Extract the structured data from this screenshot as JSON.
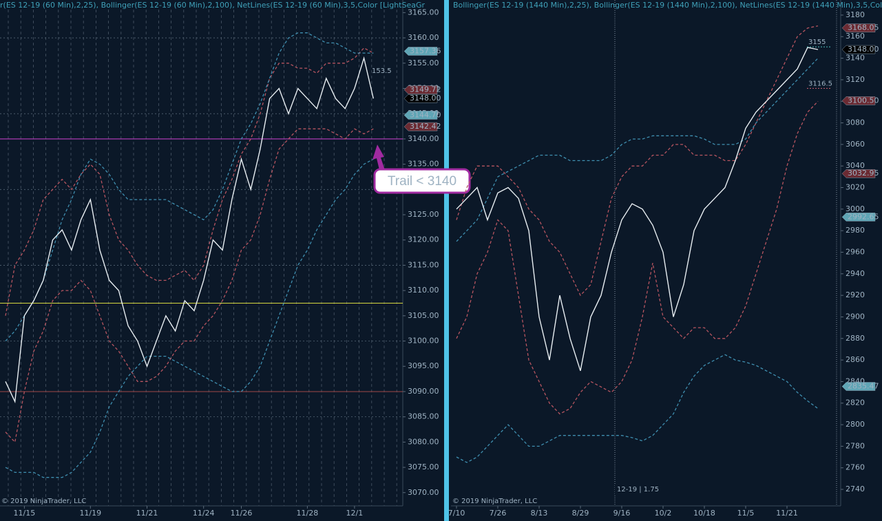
{
  "chart_data": [
    {
      "type": "line",
      "header": "r(ES 12-19 (60 Min),2,25), Bollinger(ES 12-19 (60 Min),2,100), NetLines(ES 12-19 (60 Min),3,5,Color [LightSeaGr",
      "copyright": "© 2019 NinjaTrader, LLC",
      "categories": [
        null,
        null,
        "11/15",
        null,
        null,
        null,
        null,
        null,
        null,
        "11/19",
        null,
        null,
        null,
        null,
        null,
        "11/21",
        null,
        null,
        null,
        null,
        null,
        "11/24",
        null,
        null,
        null,
        "11/26",
        null,
        null,
        null,
        null,
        null,
        null,
        "11/28",
        null,
        null,
        null,
        null,
        "12/1",
        null,
        null
      ],
      "series": [
        {
          "color": "#b85560",
          "values": [
            3105,
            3115,
            3118,
            3122,
            3128,
            3130,
            3132,
            3130,
            3133,
            3135,
            3133,
            3125,
            3120,
            3118,
            3115,
            3113,
            3112,
            3112,
            3113,
            3114,
            3112,
            3115,
            3122,
            3128,
            3132,
            3137,
            3140,
            3145,
            3152,
            3155,
            3155,
            3154,
            3154,
            3153,
            3155,
            3155,
            3155,
            3156,
            3158,
            3157
          ]
        },
        {
          "color": "#b85560",
          "values": [
            3082,
            3080,
            3090,
            3098,
            3102,
            3108,
            3110,
            3110,
            3112,
            3110,
            3105,
            3100,
            3098,
            3095,
            3092,
            3092,
            3093,
            3095,
            3098,
            3100,
            3100,
            3103,
            3105,
            3108,
            3112,
            3118,
            3120,
            3125,
            3132,
            3138,
            3140,
            3142,
            3142,
            3142,
            3142,
            3141,
            3140,
            3142,
            3141,
            3142
          ]
        },
        {
          "color": "#3f8fb0",
          "values": [
            3100,
            3102,
            3105,
            3108,
            3112,
            3118,
            3124,
            3128,
            3133,
            3136,
            3135,
            3133,
            3130,
            3128,
            3128,
            3128,
            3128,
            3128,
            3127,
            3126,
            3125,
            3124,
            3126,
            3130,
            3135,
            3140,
            3143,
            3147,
            3152,
            3157,
            3160,
            3161,
            3161,
            3160,
            3159,
            3159,
            3158,
            3157,
            3157,
            3157
          ]
        },
        {
          "color": "#3f8fb0",
          "values": [
            3075,
            3074,
            3074,
            3074,
            3073,
            3073,
            3073,
            3074,
            3076,
            3078,
            3082,
            3087,
            3090,
            3093,
            3095,
            3097,
            3097,
            3097,
            3096,
            3095,
            3094,
            3093,
            3092,
            3091,
            3090,
            3090,
            3092,
            3095,
            3100,
            3105,
            3110,
            3115,
            3118,
            3122,
            3125,
            3128,
            3130,
            3133,
            3135,
            3136
          ]
        },
        {
          "color": "#e8eef2",
          "values": [
            3092,
            3088,
            3105,
            3108,
            3112,
            3120,
            3122,
            3118,
            3124,
            3128,
            3118,
            3112,
            3110,
            3103,
            3100,
            3095,
            3100,
            3105,
            3102,
            3108,
            3106,
            3112,
            3120,
            3118,
            3128,
            3136,
            3130,
            3138,
            3148,
            3150,
            3145,
            3150,
            3148,
            3146,
            3152,
            3148,
            3146,
            3150,
            3156,
            3148
          ]
        }
      ],
      "ylim": [
        3066.7,
        3167.5
      ],
      "yticks": [
        {
          "value": 3070,
          "label": "3070.00"
        },
        {
          "value": 3075,
          "label": "3075.00"
        },
        {
          "value": 3080,
          "label": "3080.00"
        },
        {
          "value": 3085,
          "label": "3085.00"
        },
        {
          "value": 3090,
          "label": "3090.00"
        },
        {
          "value": 3095,
          "label": "3095.00"
        },
        {
          "value": 3100,
          "label": "3100.00"
        },
        {
          "value": 3105,
          "label": "3105.00"
        },
        {
          "value": 3110,
          "label": "3110.00"
        },
        {
          "value": 3115,
          "label": "3115.00"
        },
        {
          "value": 3120,
          "label": "3120.00"
        },
        {
          "value": 3125,
          "label": "3125.00"
        },
        {
          "value": 3130,
          "label": "3130.00"
        },
        {
          "value": 3135,
          "label": "3135.00"
        },
        {
          "value": 3140,
          "label": "3140.00"
        },
        {
          "value": 3145,
          "label": "3145.00"
        },
        {
          "value": 3150,
          "label": "3150.00"
        },
        {
          "value": 3155,
          "label": "3155.00"
        },
        {
          "value": 3160,
          "label": "3160.00"
        },
        {
          "value": 3165,
          "label": "3165.00"
        }
      ],
      "grid_levels": [
        3160,
        3145,
        3130,
        3115,
        3100,
        3085
      ],
      "hlines": [
        {
          "value": 3140,
          "color": "#d040d0"
        },
        {
          "value": 3107.5,
          "color": "#d8d840"
        },
        {
          "value": 3090,
          "color": "#a04848"
        }
      ],
      "price_tags": [
        {
          "value": 3157.36,
          "label": "3157.36",
          "color": "#5fa5b5"
        },
        {
          "value": 3149.72,
          "label": "3149.72",
          "color": "#6b2b33"
        },
        {
          "value": 3148,
          "label": "3148.00",
          "color": "#000000"
        },
        {
          "value": 3144.7,
          "label": "3144.70",
          "color": "#5fa5b5"
        },
        {
          "value": 3142.42,
          "label": "3142.42",
          "color": "#6b2b33"
        }
      ],
      "note": "153.5",
      "callout": "Trail < 3140"
    },
    {
      "type": "line",
      "header": "Bollinger(ES 12-19 (1440 Min),2,25), Bollinger(ES 12-19 (1440 Min),2,100), NetLines(ES 12-19 (1440 Min),3,5,Color",
      "copyright": "© 2019 NinjaTrader, LLC",
      "categories": [
        "7/10",
        null,
        null,
        null,
        "7/26",
        null,
        null,
        null,
        "8/13",
        null,
        null,
        null,
        "8/29",
        null,
        null,
        null,
        "9/16",
        null,
        null,
        null,
        "10/2",
        null,
        null,
        null,
        "10/18",
        null,
        null,
        null,
        "11/5",
        null,
        null,
        null,
        "11/21",
        null,
        null,
        null
      ],
      "series": [
        {
          "color": "#b85560",
          "values": [
            2990,
            3020,
            3040,
            3040,
            3040,
            3030,
            3020,
            3000,
            2990,
            2970,
            2960,
            2940,
            2920,
            2930,
            2970,
            3010,
            3030,
            3040,
            3040,
            3050,
            3050,
            3060,
            3060,
            3050,
            3050,
            3050,
            3045,
            3045,
            3060,
            3080,
            3100,
            3120,
            3140,
            3160,
            3168,
            3170
          ]
        },
        {
          "color": "#b85560",
          "values": [
            2880,
            2900,
            2940,
            2960,
            2990,
            2980,
            2920,
            2860,
            2840,
            2820,
            2810,
            2815,
            2830,
            2840,
            2835,
            2830,
            2840,
            2860,
            2900,
            2950,
            2900,
            2890,
            2880,
            2890,
            2890,
            2880,
            2880,
            2890,
            2910,
            2940,
            2970,
            3000,
            3040,
            3070,
            3090,
            3100
          ]
        },
        {
          "color": "#3f8fb0",
          "values": [
            2970,
            2980,
            2990,
            3010,
            3030,
            3035,
            3040,
            3045,
            3050,
            3050,
            3050,
            3045,
            3045,
            3045,
            3045,
            3050,
            3060,
            3065,
            3065,
            3068,
            3068,
            3068,
            3068,
            3068,
            3065,
            3060,
            3060,
            3060,
            3065,
            3080,
            3090,
            3100,
            3110,
            3120,
            3130,
            3140
          ]
        },
        {
          "color": "#3f8fb0",
          "values": [
            2770,
            2765,
            2770,
            2780,
            2790,
            2800,
            2790,
            2780,
            2780,
            2785,
            2790,
            2790,
            2790,
            2790,
            2790,
            2790,
            2790,
            2788,
            2785,
            2790,
            2800,
            2810,
            2830,
            2845,
            2855,
            2860,
            2865,
            2860,
            2858,
            2855,
            2850,
            2845,
            2840,
            2830,
            2822,
            2815
          ]
        },
        {
          "color": "#e8eef2",
          "values": [
            3000,
            3010,
            3020,
            2990,
            3015,
            3020,
            3010,
            2980,
            2900,
            2860,
            2920,
            2880,
            2850,
            2900,
            2920,
            2960,
            2990,
            3005,
            3000,
            2985,
            2960,
            2900,
            2930,
            2980,
            3000,
            3010,
            3020,
            3045,
            3075,
            3090,
            3100,
            3110,
            3120,
            3130,
            3150,
            3148
          ]
        }
      ],
      "ylim": [
        2721.5,
        3194
      ],
      "yticks": [
        2740,
        2760,
        2780,
        2800,
        2820,
        2840,
        2860,
        2880,
        2900,
        2920,
        2940,
        2960,
        2980,
        3000,
        3020,
        3040,
        3060,
        3080,
        3100,
        3120,
        3140,
        3160,
        3180
      ],
      "grid_levels": [],
      "hlines": [],
      "price_tags": [
        {
          "value": 3168.05,
          "label": "3168.05",
          "color": "#6b2b33"
        },
        {
          "value": 3148,
          "label": "3148.00",
          "color": "#000000"
        },
        {
          "value": 3100.5,
          "label": "3100.50",
          "color": "#6b2b33"
        },
        {
          "value": 3032.95,
          "label": "3032.95",
          "color": "#6b2b33"
        },
        {
          "value": 2992.65,
          "label": "2992.65",
          "color": "#5fa5b5"
        },
        {
          "value": 2835.47,
          "label": "2835.47",
          "color": "#5fa5b5"
        }
      ],
      "levels": [
        {
          "value": 3155,
          "label": "3155",
          "color": "#4fc0c0"
        },
        {
          "value": 3116.5,
          "label": "3116.5",
          "color": "#d06070"
        }
      ],
      "note": "12-19 | 1.75"
    }
  ]
}
